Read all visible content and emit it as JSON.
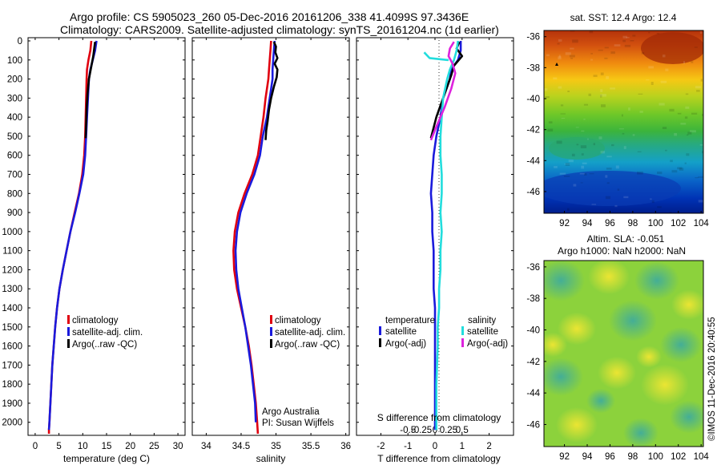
{
  "header": {
    "line1": "Argo profile: CS 5905023_260 05-Dec-2016 20161206_338 41.4099S 97.3436E",
    "line2": "Climatology: CARS2009. Satellite-adjusted climatology: synTS_20161204.nc (1d earlier)"
  },
  "footer_stamp": "©IMOS 11-Dec-2016 20:40:55",
  "colors": {
    "climatology": "#e0000f",
    "satellite": "#1a1adc",
    "argo": "#000000",
    "satellite_salinity": "#22dddd",
    "argo_salinity_diff": "#dd22dd"
  },
  "chart_data": [
    {
      "type": "line",
      "id": "temperature",
      "xlabel": "temperature (deg C)",
      "xlim": [
        -1.5,
        31.5
      ],
      "xticks": [
        0,
        5,
        10,
        15,
        20,
        25,
        30
      ],
      "ylim": [
        0,
        2060
      ],
      "yticks": [
        0,
        100,
        200,
        300,
        400,
        500,
        600,
        700,
        800,
        900,
        1000,
        1100,
        1200,
        1300,
        1400,
        1500,
        1600,
        1700,
        1800,
        1900,
        2000
      ],
      "legend": [
        "climatology",
        "satellite-adj. clim.",
        "Argo(..raw -QC)"
      ],
      "series": [
        {
          "name": "climatology",
          "color": "#e0000f",
          "x": [
            11.8,
            11.6,
            11.2,
            10.9,
            10.8,
            10.7,
            10.6,
            10.5,
            10.3,
            9.9,
            9.2,
            8.3,
            7.4,
            6.6,
            5.8,
            5.1,
            4.6,
            4.2,
            3.9,
            3.6,
            3.4,
            3.2,
            3.0,
            2.9,
            2.9
          ],
          "y": [
            0,
            50,
            100,
            150,
            200,
            300,
            400,
            500,
            600,
            700,
            800,
            900,
            1000,
            1100,
            1200,
            1300,
            1400,
            1500,
            1600,
            1700,
            1800,
            1900,
            2000,
            2040,
            2060
          ]
        },
        {
          "name": "satellite-adj. clim.",
          "color": "#1a1adc",
          "x": [
            12.9,
            12.6,
            12.1,
            11.6,
            11.3,
            11.1,
            10.9,
            10.7,
            10.5,
            10.1,
            9.3,
            8.4,
            7.4,
            6.6,
            5.8,
            5.1,
            4.6,
            4.2,
            3.9,
            3.6,
            3.4,
            3.2,
            3.0,
            2.9
          ],
          "y": [
            0,
            50,
            100,
            150,
            200,
            300,
            400,
            500,
            600,
            700,
            800,
            900,
            1000,
            1100,
            1200,
            1300,
            1400,
            1500,
            1600,
            1700,
            1800,
            1900,
            2000,
            2040
          ]
        },
        {
          "name": "Argo(..raw -QC)",
          "color": "#000000",
          "x": [
            12.6,
            12.4,
            12.2,
            11.9,
            11.6,
            11.3,
            11.0,
            10.8,
            10.7,
            10.6
          ],
          "y": [
            5,
            40,
            80,
            120,
            160,
            200,
            280,
            360,
            440,
            510
          ]
        }
      ]
    },
    {
      "type": "line",
      "id": "salinity",
      "xlabel": "salinity",
      "xlim": [
        33.8,
        36.05
      ],
      "xticks": [
        34,
        34.5,
        35,
        35.5,
        36
      ],
      "xticklabels": [
        "34",
        "34.5",
        "35",
        "35.5",
        "36"
      ],
      "ylim": [
        0,
        2060
      ],
      "legend": [
        "climatology",
        "satellite-adj. clim.",
        "Argo(..raw -QC)"
      ],
      "annotation": [
        "Argo Australia",
        "PI: Susan Wijffels"
      ],
      "series": [
        {
          "name": "climatology",
          "color": "#e0000f",
          "x": [
            34.93,
            34.92,
            34.91,
            34.9,
            34.89,
            34.85,
            34.82,
            34.78,
            34.74,
            34.66,
            34.55,
            34.46,
            34.41,
            34.39,
            34.4,
            34.44,
            34.5,
            34.56,
            34.61,
            34.65,
            34.68,
            34.71,
            34.73,
            34.74
          ],
          "y": [
            0,
            50,
            100,
            150,
            200,
            300,
            400,
            500,
            600,
            700,
            800,
            900,
            1000,
            1100,
            1200,
            1300,
            1400,
            1500,
            1600,
            1700,
            1800,
            1900,
            2000,
            2060
          ]
        },
        {
          "name": "satellite-adj. clim.",
          "color": "#1a1adc",
          "x": [
            34.98,
            34.97,
            34.96,
            34.95,
            34.95,
            34.91,
            34.87,
            34.81,
            34.77,
            34.69,
            34.58,
            34.49,
            34.44,
            34.42,
            34.43,
            34.46,
            34.51,
            34.56,
            34.6,
            34.64,
            34.67,
            34.7,
            34.71
          ],
          "y": [
            0,
            50,
            100,
            150,
            200,
            300,
            400,
            500,
            600,
            700,
            800,
            900,
            1000,
            1100,
            1200,
            1300,
            1400,
            1500,
            1600,
            1700,
            1800,
            1900,
            2000
          ]
        },
        {
          "name": "Argo(..raw -QC)",
          "color": "#000000",
          "x": [
            34.97,
            35.0,
            34.99,
            35.02,
            34.98,
            35.02,
            35.01,
            34.97,
            34.93,
            34.9,
            34.88,
            34.86,
            34.85
          ],
          "y": [
            5,
            30,
            60,
            90,
            120,
            150,
            190,
            240,
            300,
            360,
            420,
            470,
            520
          ]
        }
      ]
    },
    {
      "type": "line",
      "id": "difference",
      "xlabel": "T difference from climatology",
      "xlabel2": "S difference from climatology",
      "xlim": [
        -2.9,
        2.9
      ],
      "xticks": [
        -2,
        -1,
        0,
        1,
        2
      ],
      "xticklabels": [
        "-2",
        "-1",
        "0",
        "1",
        "2"
      ],
      "x2ticks": [
        -1,
        -0.5,
        0,
        0.5,
        1
      ],
      "x2ticklabels": [
        "-0.5",
        "-0.25",
        "0",
        "0.25",
        "0.5"
      ],
      "ylim": [
        0,
        2060
      ],
      "legend_titles": [
        "temperature",
        "salinity"
      ],
      "legend": [
        "satellite",
        "Argo(-adj)",
        "satellite",
        "Argo(-adj)"
      ],
      "series": [
        {
          "name": "satellite",
          "group": "temperature",
          "color": "#1a1adc",
          "x": [
            0.95,
            0.95,
            0.85,
            0.6,
            0.55,
            0.3,
            0.2,
            0.05,
            -0.05,
            -0.1,
            -0.15,
            -0.1,
            -0.1,
            -0.05,
            -0.05,
            -0.05,
            0,
            0,
            0,
            0,
            0,
            0
          ],
          "y": [
            0,
            50,
            100,
            150,
            200,
            300,
            400,
            500,
            600,
            700,
            800,
            900,
            1000,
            1100,
            1200,
            1300,
            1400,
            1500,
            1600,
            1700,
            1900,
            2040
          ]
        },
        {
          "name": "Argo(-adj)",
          "group": "temperature",
          "color": "#000000",
          "x": [
            0.9,
            0.8,
            1.0,
            0.7,
            0.6,
            0.35,
            0.05,
            -0.15
          ],
          "y": [
            5,
            40,
            80,
            130,
            180,
            280,
            400,
            510
          ]
        },
        {
          "name": "satellite",
          "group": "salinity",
          "color": "#22dddd",
          "x": [
            0.85,
            0.8,
            0.7,
            0.55,
            0.45,
            0.3,
            0.25,
            0.2,
            0.2,
            0.25,
            0.25,
            0.2,
            0.25,
            0.2,
            0.2,
            0.15,
            0.15,
            0.1,
            0.1,
            0.05,
            0.05
          ],
          "y": [
            0,
            50,
            100,
            150,
            200,
            300,
            400,
            500,
            600,
            700,
            800,
            900,
            1000,
            1100,
            1200,
            1300,
            1400,
            1500,
            1600,
            1800,
            2040
          ]
        },
        {
          "name": "Argo(-adj)",
          "group": "salinity",
          "color": "#dd22dd",
          "x": [
            0.7,
            0.55,
            0.5,
            0.65,
            0.75,
            0.6,
            0.35,
            0.05,
            -0.15
          ],
          "y": [
            5,
            40,
            80,
            120,
            170,
            250,
            350,
            450,
            520
          ]
        },
        {
          "name": "offset",
          "color": "#22dddd",
          "x": [
            -0.4,
            -0.2,
            0.45,
            0.5
          ],
          "y": [
            60,
            90,
            100,
            100
          ]
        }
      ]
    },
    {
      "type": "heatmap",
      "id": "sst-map",
      "title": "sat. SST: 12.4 Argo: 12.4",
      "xticks": [
        92,
        94,
        96,
        98,
        100,
        102,
        104
      ],
      "yticks": [
        -36,
        -38,
        -40,
        -42,
        -44,
        -46
      ],
      "xlim": [
        90.2,
        104.2
      ],
      "ylim": [
        -47.4,
        -35.6
      ]
    },
    {
      "type": "heatmap",
      "id": "sla-map",
      "title": "Altim. SLA: -0.051",
      "subtitle": "Argo h1000: NaN h2000: NaN",
      "xticks": [
        92,
        94,
        96,
        98,
        100,
        102,
        104
      ],
      "yticks": [
        -36,
        -38,
        -40,
        -42,
        -44,
        -46
      ],
      "xlim": [
        90.2,
        104.2
      ],
      "ylim": [
        -47.4,
        -35.6
      ]
    }
  ]
}
